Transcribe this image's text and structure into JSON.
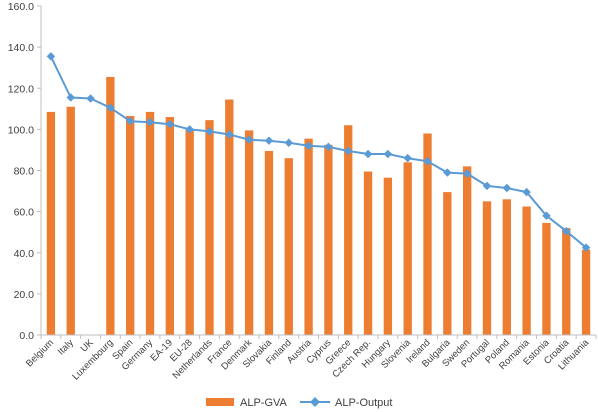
{
  "chart_data": {
    "type": "bar",
    "title": "",
    "xlabel": "",
    "ylabel": "",
    "ylim": [
      0,
      160
    ],
    "yticks": [
      "0.0",
      "20.0",
      "40.0",
      "60.0",
      "80.0",
      "100.0",
      "120.0",
      "140.0",
      "160.0"
    ],
    "grid": false,
    "legend_position": "bottom",
    "categories": [
      "Belgium",
      "Italy",
      "UK",
      "Luxembourg",
      "Spain",
      "Germany",
      "EA-19",
      "EU-28",
      "Netherlands",
      "France",
      "Denmark",
      "Slovakia",
      "Finland",
      "Austria",
      "Cyprus",
      "Greece",
      "Czech Rep.",
      "Hungary",
      "Slovenia",
      "Ireland",
      "Bulgaria",
      "Sweden",
      "Portugal",
      "Poland",
      "Romania",
      "Estonia",
      "Croatia",
      "Lithuania"
    ],
    "series": [
      {
        "name": "ALP-GVA",
        "type": "bar",
        "color": "#ED7D31",
        "values": [
          108.5,
          111,
          null,
          125.5,
          106.5,
          108.5,
          106,
          100,
          104.5,
          114.5,
          99.5,
          89.5,
          86,
          95.5,
          92.5,
          102,
          79.5,
          76.5,
          84,
          98,
          69.5,
          82,
          65,
          66,
          62.5,
          54.5,
          52,
          41.5
        ]
      },
      {
        "name": "ALP-Output",
        "type": "line",
        "color": "#5B9BD5",
        "values": [
          135.5,
          115.5,
          115,
          110.5,
          104,
          103.5,
          102.5,
          100,
          99,
          97.5,
          95,
          94.5,
          93.5,
          92,
          91.5,
          89.5,
          88,
          88,
          86,
          84.5,
          79,
          78.5,
          72.5,
          71.5,
          69.5,
          58,
          50.5,
          42.5
        ]
      }
    ]
  }
}
